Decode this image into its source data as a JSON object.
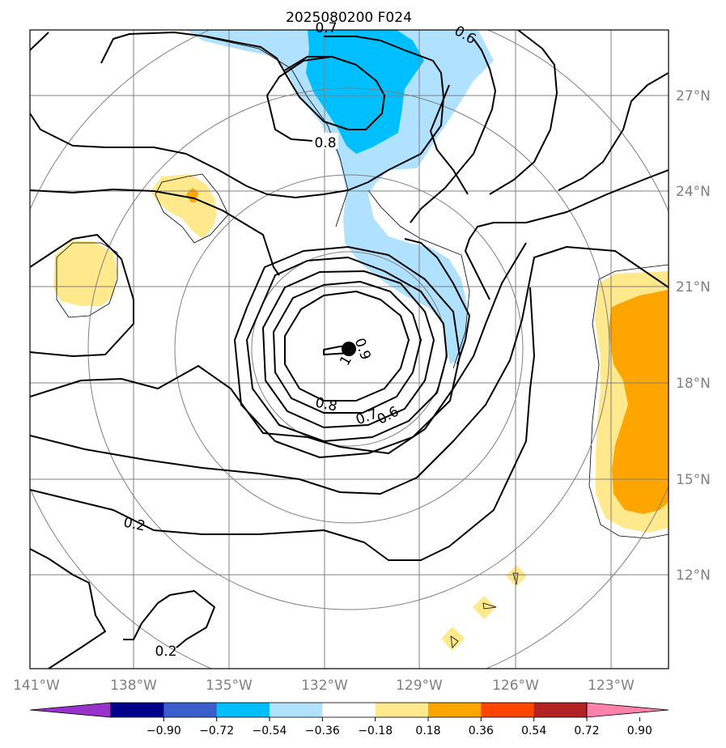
{
  "chart_data": {
    "type": "contour map",
    "title": "2025080200 F024",
    "x_ticks": [
      "141°W",
      "138°W",
      "135°W",
      "132°W",
      "129°W",
      "126°W",
      "123°W"
    ],
    "y_ticks": [
      "27°N",
      "24°N",
      "21°N",
      "18°N",
      "15°N",
      "12°N"
    ],
    "contour_labels": [
      "0.8",
      "0.6",
      "0.8",
      "0.7",
      "0.6",
      "0.2",
      "0.2",
      "0.9",
      "1",
      "0.7"
    ],
    "colorbar": {
      "ticks": [
        "−0.90",
        "−0.72",
        "−0.54",
        "−0.36",
        "−0.18",
        "0.18",
        "0.36",
        "0.54",
        "0.72",
        "0.90"
      ],
      "colors": [
        "#9932cc",
        "#00008b",
        "#3a5fcd",
        "#00bfff",
        "#b0e2ff",
        "#ffffff",
        "#ffe98c",
        "#ffa500",
        "#ff4500",
        "#b22222",
        "#ff82ab"
      ],
      "extend": "both"
    }
  }
}
